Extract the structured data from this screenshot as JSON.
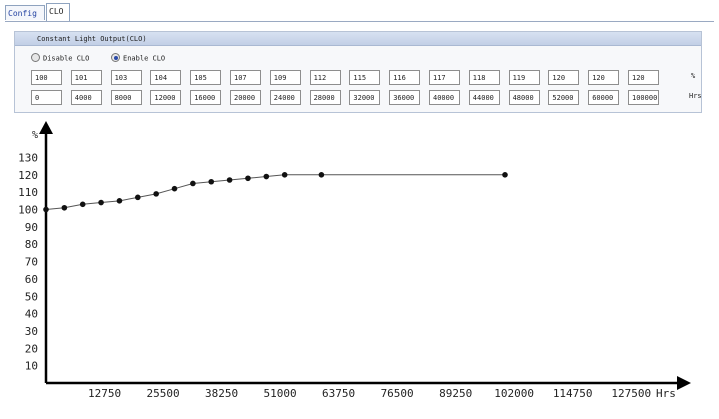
{
  "tabs": [
    {
      "label": "Config",
      "active": false
    },
    {
      "label": "CLO",
      "active": true
    }
  ],
  "panel": {
    "title": "Constant Light Output(CLO)",
    "radio_disable": "Disable CLO",
    "radio_enable": "Enable CLO",
    "selected": "Enable CLO",
    "row1_unit": "%",
    "row2_unit": "Hrs",
    "row1": [
      "100",
      "101",
      "103",
      "104",
      "105",
      "107",
      "109",
      "112",
      "115",
      "116",
      "117",
      "118",
      "119",
      "120",
      "120",
      "120"
    ],
    "row2": [
      "0",
      "4000",
      "8000",
      "12000",
      "16000",
      "20000",
      "24000",
      "28000",
      "32000",
      "36000",
      "40000",
      "44000",
      "48000",
      "52000",
      "60000",
      "100000"
    ]
  },
  "chart_data": {
    "type": "line",
    "ylabel": "%",
    "xlabel": "Hrs",
    "ylim": [
      0,
      135
    ],
    "xlim": [
      0,
      139000
    ],
    "y_ticks": [
      10,
      20,
      30,
      40,
      50,
      60,
      70,
      80,
      90,
      100,
      110,
      120,
      130
    ],
    "x_ticks": [
      12750,
      25500,
      38250,
      51000,
      63750,
      76500,
      89250,
      102000,
      114750,
      127500
    ],
    "grid": false,
    "series": [
      {
        "x": [
          0,
          4000,
          8000,
          12000,
          16000,
          20000,
          24000,
          28000,
          32000,
          36000,
          40000,
          44000,
          48000,
          52000,
          60000,
          100000
        ],
        "y": [
          100,
          101,
          103,
          104,
          105,
          107,
          109,
          112,
          115,
          116,
          117,
          118,
          119,
          120,
          120,
          120
        ]
      }
    ]
  }
}
